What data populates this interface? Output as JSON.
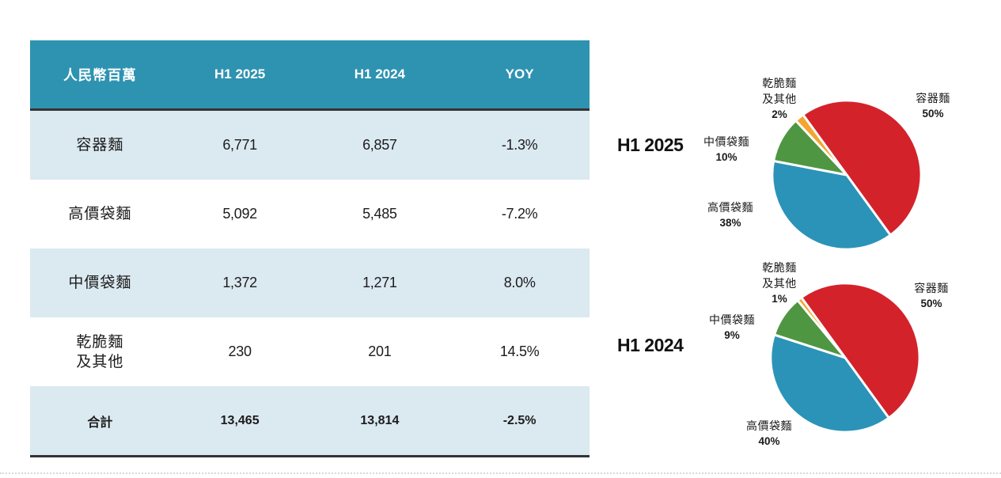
{
  "colors": {
    "header_bg": "#2E93B1",
    "row_alt_bg": "#DBE9F1",
    "dark_border": "#333333",
    "text": "#1c1c1c",
    "dotted_divider": "#D8D8D8",
    "pie_red": "#D4222B",
    "pie_blue": "#2B93B8",
    "pie_green": "#4F9642",
    "pie_orange": "#F3A52F"
  },
  "table": {
    "columns": [
      "人民幣百萬",
      "H1 2025",
      "H1 2024",
      "YOY"
    ],
    "rows": [
      {
        "label": "容器麵",
        "label2": "",
        "h1_2025": "6,771",
        "h1_2024": "6,857",
        "yoy": "-1.3%"
      },
      {
        "label": "高價袋麵",
        "label2": "",
        "h1_2025": "5,092",
        "h1_2024": "5,485",
        "yoy": "-7.2%"
      },
      {
        "label": "中價袋麵",
        "label2": "",
        "h1_2025": "1,372",
        "h1_2024": "1,271",
        "yoy": "8.0%"
      },
      {
        "label": "乾脆麵",
        "label2": "及其他",
        "h1_2025": "230",
        "h1_2024": "201",
        "yoy": "14.5%"
      }
    ],
    "total": {
      "label": "合計",
      "h1_2025": "13,465",
      "h1_2024": "13,814",
      "yoy": "-2.5%"
    }
  },
  "chart_data": [
    {
      "type": "pie",
      "title": "H1 2025",
      "start_angle_deg": -36,
      "legend_position": "outside-labels",
      "slices": [
        {
          "label": "容器麵",
          "pct_label": "50%",
          "value": 50,
          "color": "#D4222B"
        },
        {
          "label": "高價袋麵",
          "pct_label": "38%",
          "value": 38,
          "color": "#2B93B8"
        },
        {
          "label": "中價袋麵",
          "pct_label": "10%",
          "value": 10,
          "color": "#4F9642"
        },
        {
          "label": "乾脆麵及其他",
          "label_line1": "乾脆麵",
          "label_line2": "及其他",
          "pct_label": "2%",
          "value": 2,
          "color": "#F3A52F"
        }
      ]
    },
    {
      "type": "pie",
      "title": "H1 2024",
      "start_angle_deg": -36,
      "legend_position": "outside-labels",
      "slices": [
        {
          "label": "容器麵",
          "pct_label": "50%",
          "value": 50,
          "color": "#D4222B"
        },
        {
          "label": "高價袋麵",
          "pct_label": "40%",
          "value": 40,
          "color": "#2B93B8"
        },
        {
          "label": "中價袋麵",
          "pct_label": "9%",
          "value": 9,
          "color": "#4F9642"
        },
        {
          "label": "乾脆麵及其他",
          "label_line1": "乾脆麵",
          "label_line2": "及其他",
          "pct_label": "1%",
          "value": 1,
          "color": "#F3A52F"
        }
      ]
    }
  ]
}
